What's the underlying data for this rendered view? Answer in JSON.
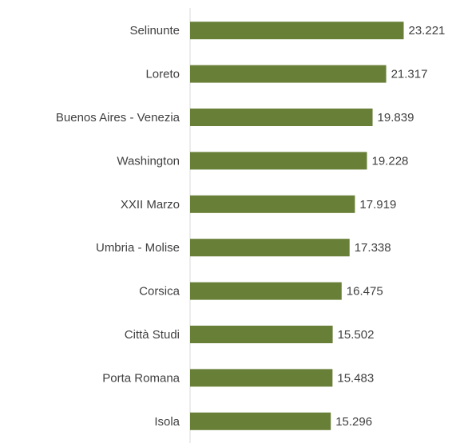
{
  "chart_data": {
    "type": "bar",
    "orientation": "horizontal",
    "categories": [
      "Selinunte",
      "Loreto",
      "Buenos Aires - Venezia",
      "Washington",
      "XXII Marzo",
      "Umbria - Molise",
      "Corsica",
      "Città Studi",
      "Porta Romana",
      "Isola"
    ],
    "values": [
      23221,
      21317,
      19839,
      19228,
      17919,
      17338,
      16475,
      15502,
      15483,
      15296
    ],
    "value_labels": [
      "23.221",
      "21.317",
      "19.839",
      "19.228",
      "17.919",
      "17.338",
      "16.475",
      "15.502",
      "15.483",
      "15.296"
    ],
    "color": "#687f37",
    "xlim": [
      0,
      25000
    ]
  }
}
